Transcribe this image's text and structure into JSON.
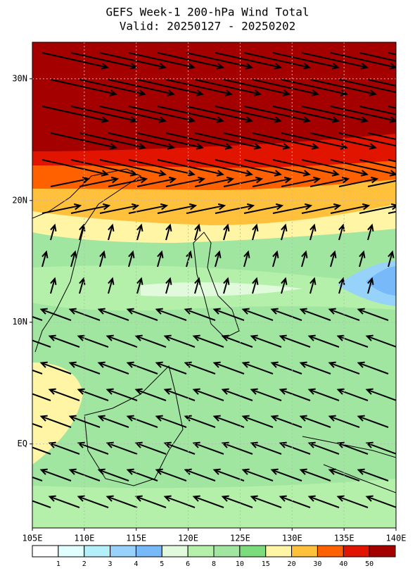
{
  "map": {
    "title": "GEFS Week-1 200-hPa Wind Total",
    "subtitle": "Valid: 20250127 - 20250202",
    "xlim": [
      105,
      140
    ],
    "ylim": [
      -6.9,
      33
    ],
    "xticks": [
      {
        "value": 105,
        "label": "105E"
      },
      {
        "value": 110,
        "label": "110E"
      },
      {
        "value": 115,
        "label": "115E"
      },
      {
        "value": 120,
        "label": "120E"
      },
      {
        "value": 125,
        "label": "125E"
      },
      {
        "value": 130,
        "label": "130E"
      },
      {
        "value": 135,
        "label": "135E"
      },
      {
        "value": 140,
        "label": "140E"
      }
    ],
    "yticks": [
      {
        "value": 30,
        "label": "30N"
      },
      {
        "value": 20,
        "label": "20N"
      },
      {
        "value": 10,
        "label": "10N"
      },
      {
        "value": 0,
        "label": "EQ"
      }
    ],
    "grid": true,
    "colorbar": {
      "levels": [
        1,
        2,
        3,
        4,
        5,
        6,
        8,
        10,
        15,
        20,
        30,
        40,
        50
      ],
      "colors": [
        "#ffffff",
        "#e1ffff",
        "#b4f0fa",
        "#96d2fa",
        "#78b9fa",
        "#e1fadc",
        "#b4f0aa",
        "#a0e6a0",
        "#7cdc7c",
        "#fff5a5",
        "#ffc03c",
        "#ff6000",
        "#e11400",
        "#a50000"
      ]
    }
  }
}
